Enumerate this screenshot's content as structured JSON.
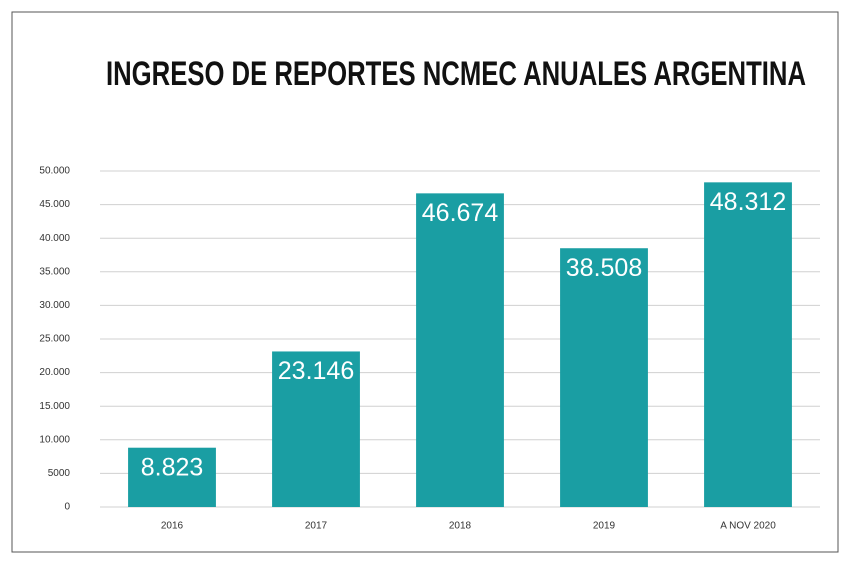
{
  "chart_data": {
    "type": "bar",
    "title": "INGRESO DE REPORTES NCMEC ANUALES ARGENTINA",
    "categories": [
      "2016",
      "2017",
      "2018",
      "2019",
      "A NOV 2020"
    ],
    "values": [
      8823,
      23146,
      46674,
      38508,
      48312
    ],
    "value_labels": [
      "8.823",
      "23.146",
      "46.674",
      "38.508",
      "48.312"
    ],
    "color": "#1a9ea3",
    "ylim": [
      0,
      50000
    ],
    "yticks": [
      0,
      5000,
      {
        "value": 10000,
        "label": "10.000"
      },
      {
        "value": 15000,
        "label": "15.000"
      },
      {
        "value": 20000,
        "label": "20.000"
      },
      {
        "value": 25000,
        "label": "25.000"
      },
      {
        "value": 30000,
        "label": "30.000"
      },
      {
        "value": 35000,
        "label": "35.000"
      },
      {
        "value": 40000,
        "label": "40.000"
      },
      {
        "value": 45000,
        "label": "45.000"
      },
      {
        "value": 50000,
        "label": "50.000"
      }
    ],
    "grid": true
  }
}
